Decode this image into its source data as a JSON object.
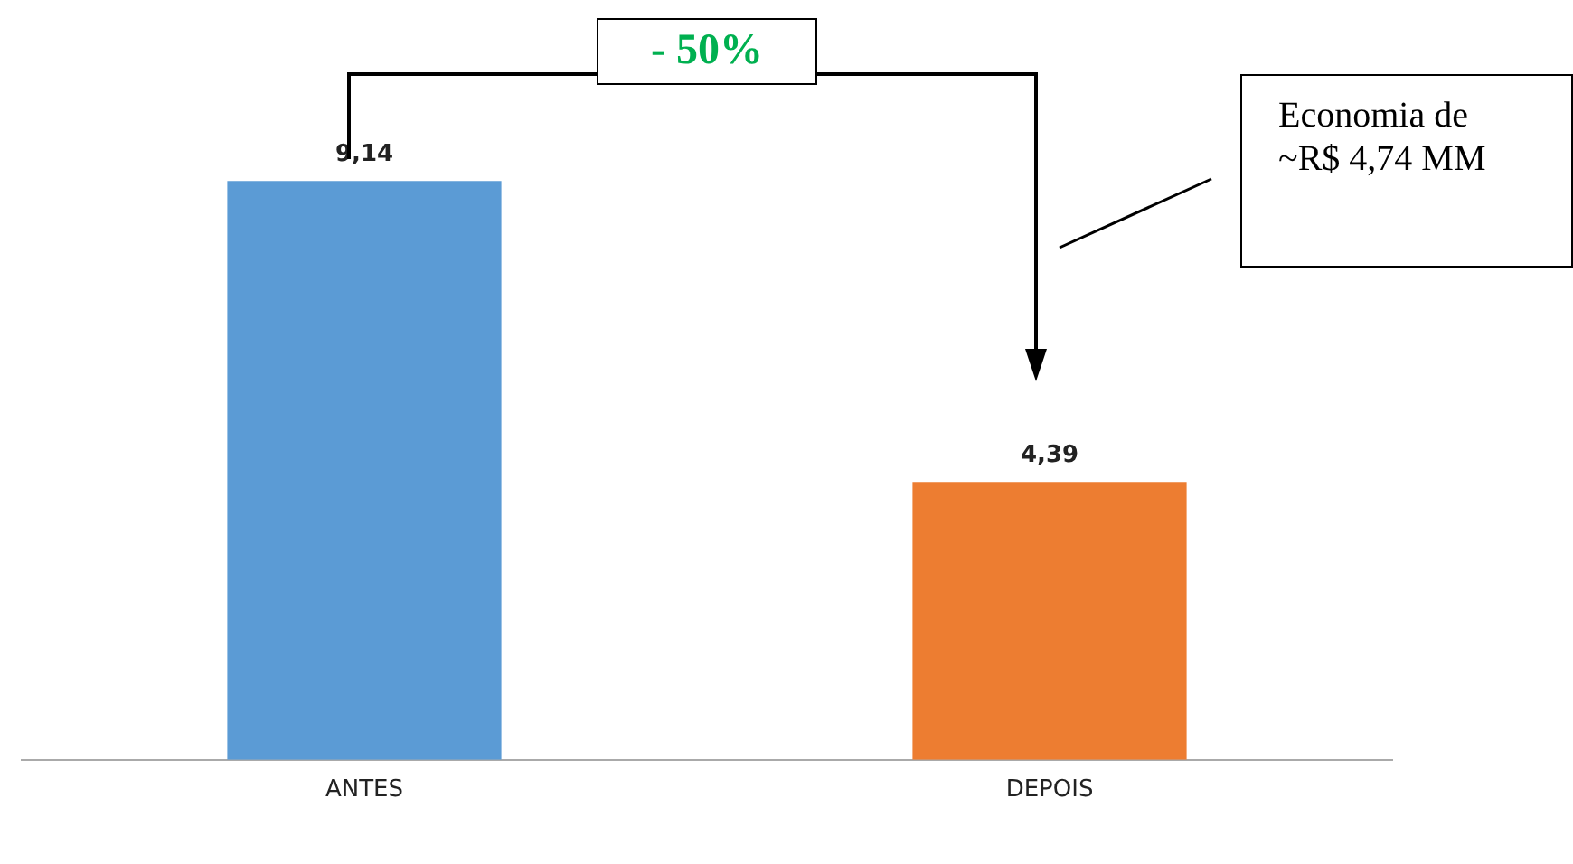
{
  "chart_data": {
    "type": "bar",
    "categories": [
      "ANTES",
      "DEPOIS"
    ],
    "values": [
      9.14,
      4.39
    ],
    "colors": [
      "#5b9bd5",
      "#ed7d31"
    ],
    "value_labels": [
      "9,14",
      "4,39"
    ],
    "grid": false,
    "legend": false,
    "annotations": [
      "- 50%",
      "Economia de ~R$ 4,74 MM"
    ]
  }
}
